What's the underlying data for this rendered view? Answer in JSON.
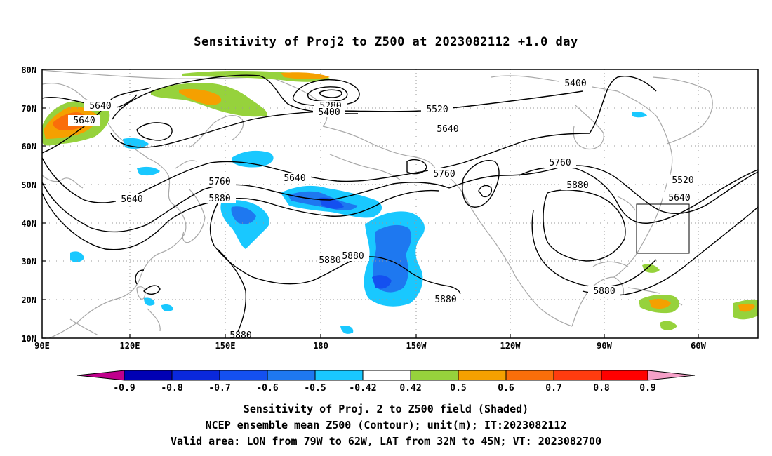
{
  "title": "Sensitivity of Proj2 to Z500 at 2023082112 +1.0 day",
  "lat_labels": [
    "80N",
    "70N",
    "60N",
    "50N",
    "40N",
    "30N",
    "20N",
    "10N"
  ],
  "lon_labels": [
    "90E",
    "120E",
    "150E",
    "180",
    "150W",
    "120W",
    "90W",
    "60W"
  ],
  "contour_labels": [
    "5640",
    "5640",
    "5280",
    "5400",
    "5520",
    "5640",
    "5400",
    "5760",
    "5640",
    "5760",
    "5880",
    "5640",
    "5760",
    "5880",
    "5520",
    "5640",
    "5880",
    "5880",
    "5880",
    "5880",
    "5880"
  ],
  "colorbar": {
    "colors": [
      "#c0008c",
      "#0000b4",
      "#0a28dc",
      "#1450f0",
      "#1e78f0",
      "#19c8ff",
      "#ffffff",
      "#96d23c",
      "#f5a000",
      "#fa6e0a",
      "#ff3c0f",
      "#ff0000",
      "#f5a0c8"
    ],
    "labels": [
      "-0.9",
      "-0.8",
      "-0.7",
      "-0.6",
      "-0.5",
      "-0.42",
      "0.42",
      "0.5",
      "0.6",
      "0.7",
      "0.8",
      "0.9"
    ]
  },
  "captions": {
    "line1": "Sensitivity of Proj. 2 to Z500 field (Shaded)",
    "line2": "NCEP ensemble mean Z500 (Contour); unit(m); IT:2023082112",
    "line3": "Valid area: LON from 79W to 62W, LAT from 32N to 45N; VT: 2023082700"
  },
  "valid_area": {
    "lon_min": -79,
    "lon_max": -62,
    "lat_min": 32,
    "lat_max": 45
  }
}
